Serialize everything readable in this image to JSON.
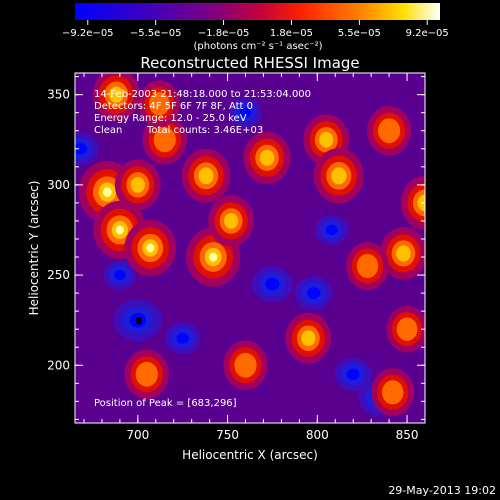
{
  "chart_data": {
    "type": "heatmap",
    "title": "Reconstructed RHESSI Image",
    "xlabel": "Heliocentric X (arcsec)",
    "ylabel": "Heliocentric Y (arcsec)",
    "xlim": [
      665,
      860
    ],
    "ylim": [
      168,
      362
    ],
    "x_ticks": [
      "700",
      "750",
      "800",
      "850"
    ],
    "y_ticks": [
      "200",
      "250",
      "300",
      "350"
    ],
    "colorbar": {
      "unit_line": "(photons cm⁻² s⁻¹ asec⁻²)",
      "ticks": [
        "−9.2e−05",
        "−5.5e−05",
        "−1.8e−05",
        "1.8e−05",
        "5.5e−05",
        "9.2e−05"
      ],
      "min": -9.2e-05,
      "max": 9.2e-05,
      "colormap": "IDL blue-purple-red-yellow-white"
    },
    "annotations": [
      "14-Feb-2003 21:48:18.000 to 21:53:04.000",
      "Detectors: 4F 5F 6F 7F 8F, Att 0",
      "Energy Range: 12.0 - 25.0 keV",
      "Clean",
      "Total counts: 3.46E+03"
    ],
    "peak_label": "Position of Peak = [683,296]",
    "peak": [
      683,
      296
    ],
    "hotspots": [
      {
        "x": 683,
        "y": 296,
        "amp": 1.0
      },
      {
        "x": 690,
        "y": 275,
        "amp": 0.85
      },
      {
        "x": 707,
        "y": 265,
        "amp": 0.8
      },
      {
        "x": 742,
        "y": 260,
        "amp": 0.9
      },
      {
        "x": 752,
        "y": 280,
        "amp": 0.6
      },
      {
        "x": 738,
        "y": 305,
        "amp": 0.7
      },
      {
        "x": 715,
        "y": 325,
        "amp": 0.55
      },
      {
        "x": 700,
        "y": 300,
        "amp": 0.6
      },
      {
        "x": 772,
        "y": 315,
        "amp": 0.65
      },
      {
        "x": 805,
        "y": 325,
        "amp": 0.6
      },
      {
        "x": 812,
        "y": 305,
        "amp": 0.75
      },
      {
        "x": 840,
        "y": 330,
        "amp": 0.55
      },
      {
        "x": 860,
        "y": 290,
        "amp": 0.7
      },
      {
        "x": 848,
        "y": 262,
        "amp": 0.65
      },
      {
        "x": 828,
        "y": 255,
        "amp": 0.5
      },
      {
        "x": 688,
        "y": 350,
        "amp": 0.65
      },
      {
        "x": 712,
        "y": 345,
        "amp": 0.45
      },
      {
        "x": 760,
        "y": 200,
        "amp": 0.55
      },
      {
        "x": 795,
        "y": 215,
        "amp": 0.6
      },
      {
        "x": 705,
        "y": 195,
        "amp": 0.55
      },
      {
        "x": 842,
        "y": 185,
        "amp": 0.5
      },
      {
        "x": 850,
        "y": 220,
        "amp": 0.45
      }
    ],
    "coldspots": [
      {
        "x": 700,
        "y": 225,
        "amp": 1.0
      },
      {
        "x": 668,
        "y": 320,
        "amp": 0.55
      },
      {
        "x": 775,
        "y": 245,
        "amp": 0.7
      },
      {
        "x": 798,
        "y": 240,
        "amp": 0.6
      },
      {
        "x": 835,
        "y": 182,
        "amp": 0.8
      },
      {
        "x": 820,
        "y": 195,
        "amp": 0.55
      },
      {
        "x": 725,
        "y": 215,
        "amp": 0.5
      },
      {
        "x": 690,
        "y": 250,
        "amp": 0.35
      },
      {
        "x": 760,
        "y": 340,
        "amp": 0.35
      },
      {
        "x": 808,
        "y": 275,
        "amp": 0.4
      }
    ]
  },
  "footer_date": "29-May-2013 19:02"
}
